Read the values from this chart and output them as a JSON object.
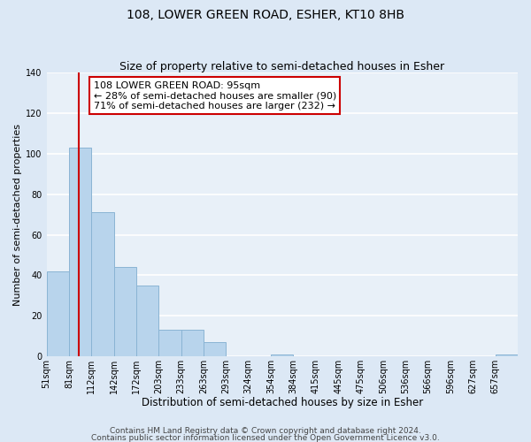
{
  "title": "108, LOWER GREEN ROAD, ESHER, KT10 8HB",
  "subtitle": "Size of property relative to semi-detached houses in Esher",
  "xlabel": "Distribution of semi-detached houses by size in Esher",
  "ylabel": "Number of semi-detached properties",
  "bin_labels": [
    "51sqm",
    "81sqm",
    "112sqm",
    "142sqm",
    "172sqm",
    "203sqm",
    "233sqm",
    "263sqm",
    "293sqm",
    "324sqm",
    "354sqm",
    "384sqm",
    "415sqm",
    "445sqm",
    "475sqm",
    "506sqm",
    "536sqm",
    "566sqm",
    "596sqm",
    "627sqm",
    "657sqm"
  ],
  "bar_heights": [
    42,
    103,
    71,
    44,
    35,
    13,
    13,
    7,
    0,
    0,
    1,
    0,
    0,
    0,
    0,
    0,
    0,
    0,
    0,
    0,
    1
  ],
  "bar_color": "#b8d4ec",
  "bar_edge_color": "#8ab4d4",
  "vline_bin": 1,
  "vline_color": "#cc0000",
  "ylim": [
    0,
    140
  ],
  "yticks": [
    0,
    20,
    40,
    60,
    80,
    100,
    120,
    140
  ],
  "annotation_box_text": "108 LOWER GREEN ROAD: 95sqm\n← 28% of semi-detached houses are smaller (90)\n71% of semi-detached houses are larger (232) →",
  "annotation_box_color": "#ffffff",
  "annotation_box_edge_color": "#cc0000",
  "footnote1": "Contains HM Land Registry data © Crown copyright and database right 2024.",
  "footnote2": "Contains public sector information licensed under the Open Government Licence v3.0.",
  "background_color": "#dce8f5",
  "plot_background_color": "#e8f0f8",
  "grid_color": "#ffffff",
  "title_fontsize": 10,
  "subtitle_fontsize": 9,
  "xlabel_fontsize": 8.5,
  "ylabel_fontsize": 8,
  "tick_fontsize": 7,
  "annotation_fontsize": 8,
  "footnote_fontsize": 6.5
}
